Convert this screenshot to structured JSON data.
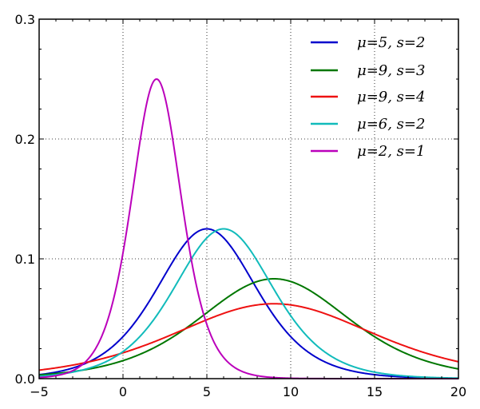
{
  "chart_data": {
    "type": "line",
    "title": "",
    "xlabel": "",
    "ylabel": "",
    "xlim": [
      -5,
      20
    ],
    "ylim": [
      0,
      0.3
    ],
    "x_ticks": [
      "−5",
      "0",
      "5",
      "10",
      "15",
      "20"
    ],
    "x_tick_values": [
      -5,
      0,
      5,
      10,
      15,
      20
    ],
    "y_ticks": [
      "0.0",
      "0.1",
      "0.2",
      "0.3"
    ],
    "y_tick_values": [
      0,
      0.1,
      0.2,
      0.3
    ],
    "grid": true,
    "legend_placement": "top-right",
    "function": "logistic pdf",
    "series": [
      {
        "name": "μ=5, s=2",
        "mu": 5,
        "s": 2,
        "color": "#0000cc"
      },
      {
        "name": "μ=9, s=3",
        "mu": 9,
        "s": 3,
        "color": "#007700"
      },
      {
        "name": "μ=9, s=4",
        "mu": 9,
        "s": 4,
        "color": "#ee1111"
      },
      {
        "name": "μ=6, s=2",
        "mu": 6,
        "s": 2,
        "color": "#11bbbb"
      },
      {
        "name": "μ=2, s=1",
        "mu": 2,
        "s": 1,
        "color": "#bb00bb"
      }
    ]
  }
}
